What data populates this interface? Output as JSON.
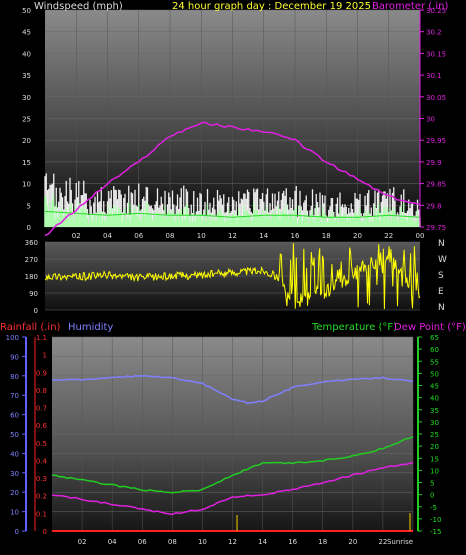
{
  "chart_data": [
    {
      "type": "line",
      "title": "24 hour graph day : December 19 2025",
      "ylabel": "Windspeed (mph)",
      "y2label": "Barometer (.in)",
      "x_ticks": [
        "02",
        "04",
        "06",
        "08",
        "10",
        "12",
        "14",
        "16",
        "18",
        "20",
        "22",
        "00"
      ],
      "ylim": [
        0,
        50
      ],
      "y_ticks": [
        0,
        5,
        10,
        15,
        20,
        25,
        30,
        35,
        40,
        45,
        50
      ],
      "y2lim": [
        29.75,
        30.25
      ],
      "y2_ticks": [
        "29.75",
        "29.8",
        "29.85",
        "29.9",
        "29.95",
        "30",
        "30.05",
        "30.1",
        "30.15",
        "30.2",
        "30.25"
      ],
      "grid": true,
      "colors": {
        "wind": "#ffffff",
        "wind_avg": "#22dd22",
        "barometer": "#e020e0"
      },
      "series": [
        {
          "name": "Windspeed",
          "x": [
            0,
            2,
            4,
            6,
            8,
            10,
            12,
            14,
            16,
            18,
            20,
            22,
            24
          ],
          "values": [
            8,
            7,
            6,
            7,
            6,
            6,
            5,
            6,
            6,
            5,
            5,
            6,
            5
          ]
        },
        {
          "name": "Barometer",
          "x": [
            0,
            2,
            4,
            6,
            8,
            10,
            12,
            14,
            16,
            18,
            20,
            22,
            24
          ],
          "values": [
            29.73,
            29.79,
            29.85,
            29.9,
            29.96,
            29.99,
            29.98,
            29.97,
            29.95,
            29.9,
            29.86,
            29.82,
            29.8
          ]
        }
      ]
    },
    {
      "type": "scatter",
      "ylabel_right": [
        "N",
        "W",
        "S",
        "E",
        "N"
      ],
      "ylim": [
        0,
        360
      ],
      "y_ticks": [
        0,
        90,
        180,
        270,
        360
      ],
      "grid": true,
      "colors": {
        "direction": "#ffff00"
      },
      "series": [
        {
          "name": "Wind direction",
          "x": [
            0,
            2,
            4,
            6,
            8,
            10,
            12,
            14,
            15,
            15.5,
            16,
            18,
            20,
            22,
            24
          ],
          "values": [
            180,
            175,
            185,
            170,
            180,
            185,
            200,
            210,
            170,
            80,
            40,
            100,
            200,
            300,
            80
          ]
        }
      ]
    },
    {
      "type": "line",
      "left_labels": [
        "Rainfall (.in)",
        "Humidity"
      ],
      "right_labels": [
        "Temperature (°F)",
        "Dew Point (°F)"
      ],
      "x_ticks": [
        "02",
        "04",
        "06",
        "08",
        "10",
        "12",
        "14",
        "16",
        "18",
        "20",
        "22",
        "Sunrise"
      ],
      "humidity_lim": [
        0,
        100
      ],
      "humidity_ticks": [
        0,
        10,
        20,
        30,
        40,
        50,
        60,
        70,
        80,
        90,
        100
      ],
      "rain_lim": [
        0,
        1.1
      ],
      "rain_ticks": [
        "0",
        "0.1",
        "0.2",
        "0.3",
        "0.4",
        "0.5",
        "0.6",
        "0.7",
        "0.8",
        "0.9",
        "1",
        "1.1"
      ],
      "temp_lim": [
        -15,
        65
      ],
      "temp_ticks": [
        -15,
        -10,
        -5,
        0,
        5,
        10,
        15,
        20,
        25,
        30,
        35,
        40,
        45,
        50,
        55,
        60,
        65
      ],
      "grid": true,
      "colors": {
        "humidity": "#8080ff",
        "temperature": "#22cc22",
        "dewpoint": "#e020e0",
        "rainfall": "#ff2020"
      },
      "series": [
        {
          "name": "Humidity",
          "x": [
            0,
            2,
            4,
            6,
            8,
            10,
            12,
            13,
            14,
            16,
            18,
            20,
            22,
            24
          ],
          "values": [
            78,
            78,
            79,
            80,
            79,
            76,
            68,
            66,
            67,
            74,
            77,
            78,
            79,
            77
          ]
        },
        {
          "name": "Temperature",
          "x": [
            0,
            2,
            4,
            6,
            8,
            10,
            12,
            14,
            16,
            18,
            20,
            22,
            24
          ],
          "values": [
            8,
            6,
            4,
            2,
            1,
            2,
            8,
            13,
            13,
            14,
            16,
            19,
            24
          ]
        },
        {
          "name": "Dew Point",
          "x": [
            0,
            2,
            4,
            6,
            8,
            10,
            12,
            14,
            16,
            18,
            20,
            22,
            24
          ],
          "values": [
            0,
            -2,
            -4,
            -6,
            -8,
            -6,
            -1,
            0,
            2,
            5,
            8,
            11,
            13
          ]
        },
        {
          "name": "Rainfall",
          "x": [
            0,
            24
          ],
          "values": [
            0,
            0
          ]
        }
      ]
    }
  ]
}
